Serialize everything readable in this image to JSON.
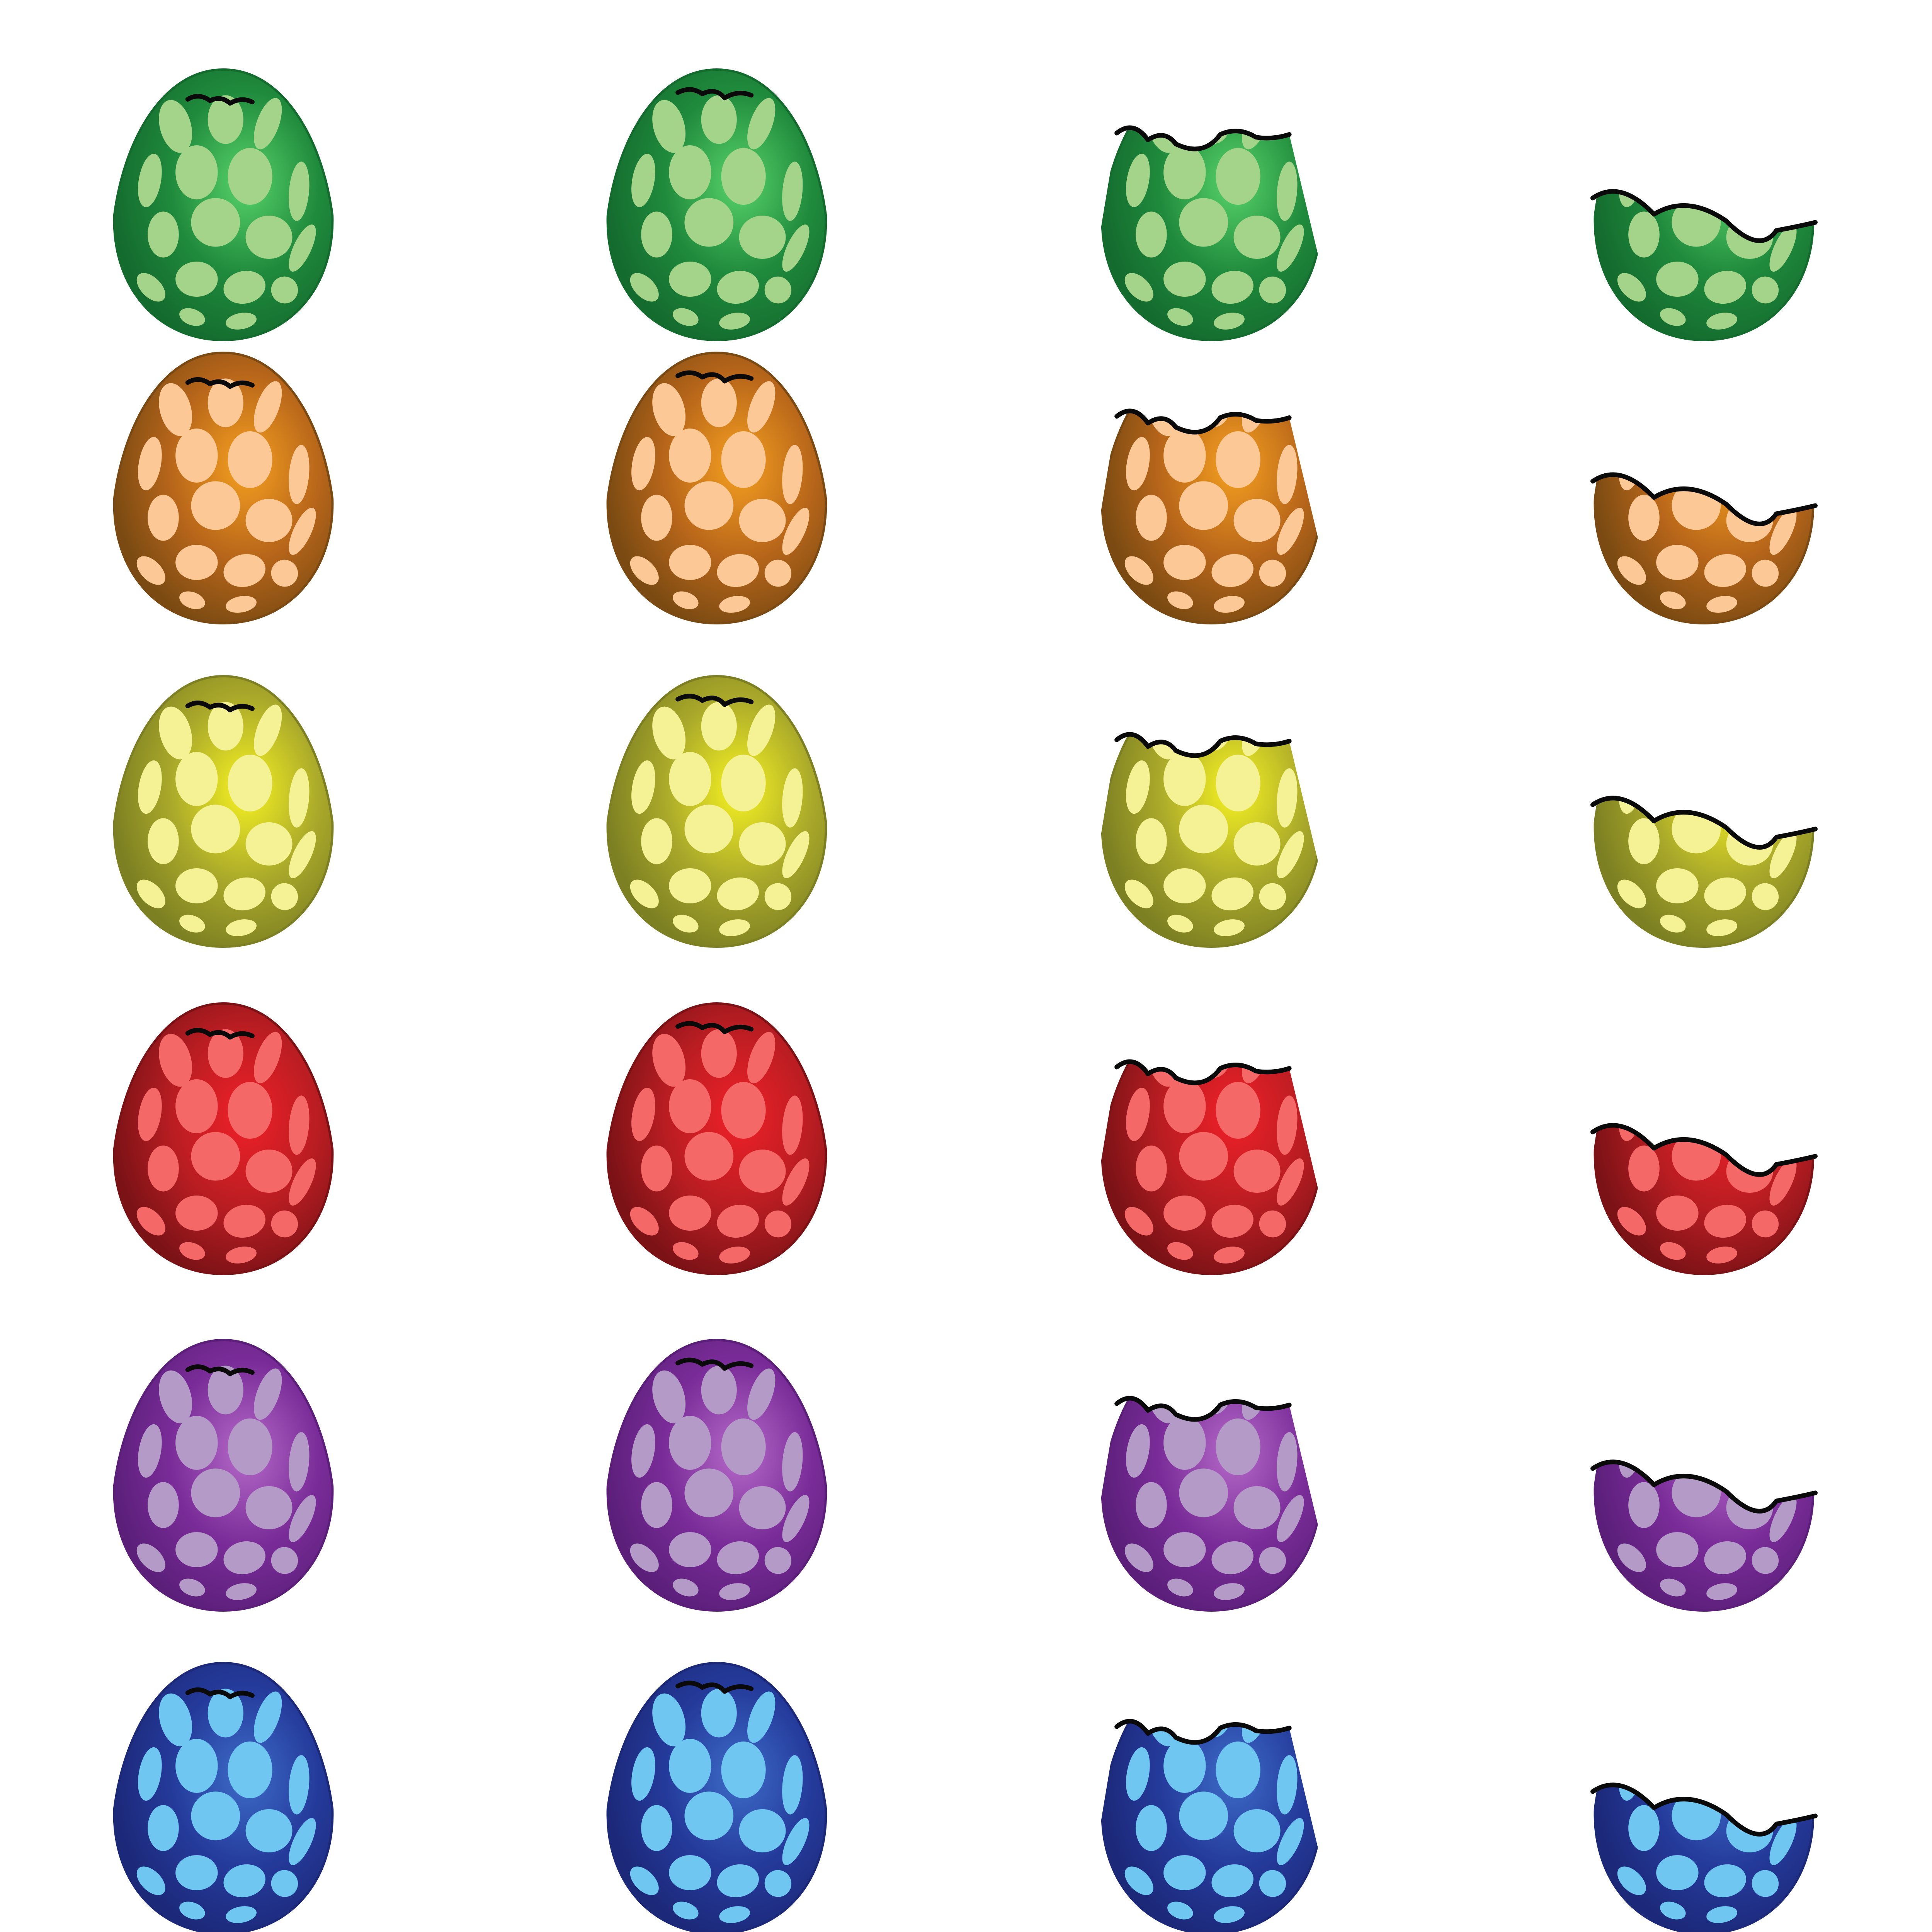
{
  "sprite_sheet": {
    "background": "#ffffff",
    "crack_line_color": "#0a0a0a",
    "stages": [
      "intact-cracked",
      "top-chipped",
      "top-broken",
      "bottom-shell"
    ],
    "rows": [
      {
        "color_name": "green",
        "shell_dark": "#146b2e",
        "shell_mid": "#1f8a3c",
        "shell_light": "#58d36a",
        "spot": "#a4d48a"
      },
      {
        "color_name": "orange",
        "shell_dark": "#7a4a12",
        "shell_mid": "#b8661a",
        "shell_light": "#f5a020",
        "spot": "#fbc896"
      },
      {
        "color_name": "yellow",
        "shell_dark": "#7c7f22",
        "shell_mid": "#aaa92a",
        "shell_light": "#f6f222",
        "spot": "#f5f296"
      },
      {
        "color_name": "red",
        "shell_dark": "#7a1216",
        "shell_mid": "#b81d22",
        "shell_light": "#f02028",
        "spot": "#f46868"
      },
      {
        "color_name": "purple",
        "shell_dark": "#5b1f7a",
        "shell_mid": "#7a2c98",
        "shell_light": "#b56ac8",
        "spot": "#b49ac6"
      },
      {
        "color_name": "blue",
        "shell_dark": "#1c2878",
        "shell_mid": "#243a9a",
        "shell_light": "#3d6cc8",
        "spot": "#6fc6f0"
      }
    ]
  }
}
